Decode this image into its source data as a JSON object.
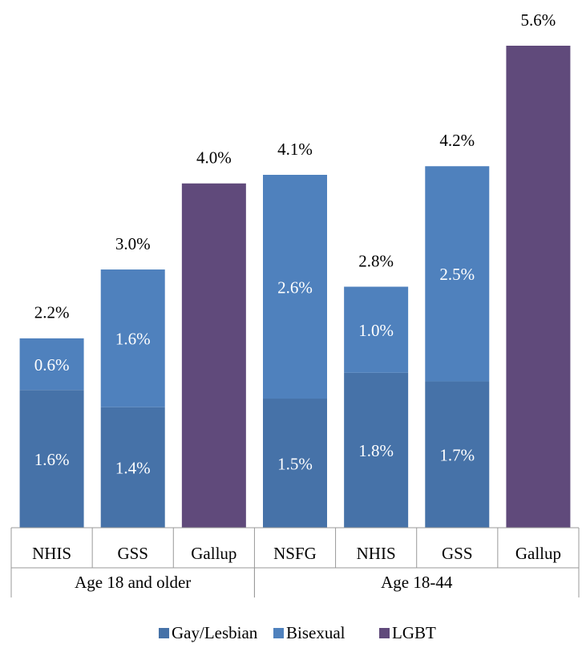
{
  "chart_data": {
    "type": "stacked_bar",
    "categories": [
      "NHIS",
      "GSS",
      "Gallup",
      "NSFG",
      "NHIS",
      "GSS",
      "Gallup"
    ],
    "groups": [
      {
        "label": "Age 18 and older",
        "size": 3
      },
      {
        "label": "Age 18-44",
        "size": 4
      }
    ],
    "series": [
      {
        "name": "Gay/Lesbian",
        "color": "#4672a8",
        "values": [
          1.6,
          1.4,
          null,
          1.5,
          1.8,
          1.7,
          null
        ],
        "value_labels": [
          "1.6%",
          "1.4%",
          null,
          "1.5%",
          "1.8%",
          "1.7%",
          null
        ]
      },
      {
        "name": "Bisexual",
        "color": "#4f81bd",
        "values": [
          0.6,
          1.6,
          null,
          2.6,
          1.0,
          2.5,
          null
        ],
        "value_labels": [
          "0.6%",
          "1.6%",
          null,
          "2.6%",
          "1.0%",
          "2.5%",
          null
        ]
      },
      {
        "name": "LGBT",
        "color": "#604a7b",
        "values": [
          null,
          null,
          4.0,
          null,
          null,
          null,
          5.6
        ]
      }
    ],
    "totals": [
      2.2,
      3.0,
      4.0,
      4.1,
      2.8,
      4.2,
      5.6
    ],
    "total_labels": [
      "2.2%",
      "3.0%",
      "4.0%",
      "4.1%",
      "2.8%",
      "4.2%",
      "5.6%"
    ]
  }
}
